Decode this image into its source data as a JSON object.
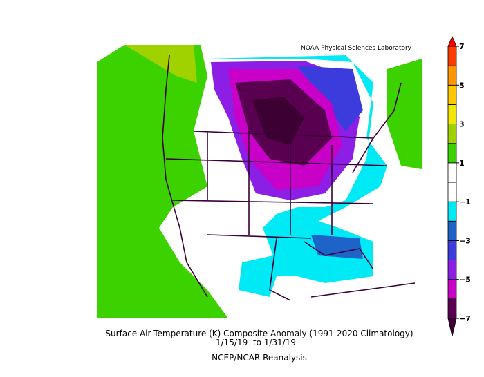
{
  "header": {
    "lab": "NOAA Physical Sciences Laboratory"
  },
  "footer": {
    "title": "Surface Air Temperature (K) Composite Anomaly (1991-2020 Climatology)",
    "dates": "1/15/19  to 1/31/19",
    "source": "NCEP/NCAR Reanalysis"
  },
  "colorbar": {
    "range": [
      -7,
      7
    ],
    "ticks": [
      7,
      5,
      3,
      1,
      {
        "value": -1,
        "label": "−1"
      },
      {
        "value": -3,
        "label": "−3"
      },
      {
        "value": -5,
        "label": "−5"
      },
      {
        "value": -7,
        "label": "−7"
      }
    ],
    "bins": [
      -7,
      -6,
      -5,
      -4,
      -3,
      -2,
      -1,
      0,
      1,
      2,
      3,
      4,
      5,
      6,
      7
    ],
    "colors": [
      "#5a0050",
      "#c800c8",
      "#8c1ee6",
      "#3c3cdc",
      "#1e64c8",
      "#00eaf5",
      "#ffffff",
      "#ffffff",
      "#3cd200",
      "#a0d200",
      "#f0e600",
      "#ffc800",
      "#ff9600",
      "#ff3c00"
    ],
    "under_color": "#3c0032",
    "over_color": "#ff0000"
  }
}
